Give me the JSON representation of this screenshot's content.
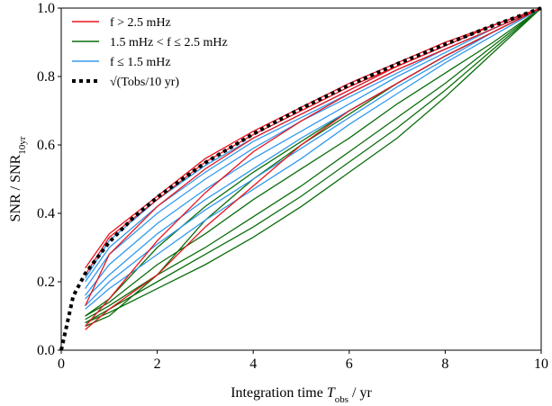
{
  "chart_data": {
    "type": "line",
    "xlabel": [
      "Integration time ",
      "T",
      "obs",
      " / yr"
    ],
    "ylabel": [
      "SNR / SNR",
      "10yr"
    ],
    "xlim": [
      0,
      10
    ],
    "ylim": [
      0,
      1
    ],
    "xticks": [
      0,
      2,
      4,
      6,
      8,
      10
    ],
    "yticks": [
      {
        "value": 0,
        "label": "0.0"
      },
      {
        "value": 0.2,
        "label": "0.2"
      },
      {
        "value": 0.4,
        "label": "0.4"
      },
      {
        "value": 0.6,
        "label": "0.6"
      },
      {
        "value": 0.8,
        "label": "0.8"
      },
      {
        "value": 1,
        "label": "1.0"
      }
    ],
    "legend": "upper left",
    "series": [
      {
        "name": "f > 2.5 mHz",
        "color": "#e8141c",
        "style": "solid",
        "x": [
          0.5,
          1,
          2,
          3,
          4,
          5,
          6,
          7,
          8,
          9,
          10
        ],
        "lines": [
          [
            0.24,
            0.34,
            0.45,
            0.56,
            0.64,
            0.71,
            0.78,
            0.84,
            0.9,
            0.95,
            1
          ],
          [
            0.22,
            0.33,
            0.44,
            0.55,
            0.63,
            0.7,
            0.77,
            0.83,
            0.89,
            0.95,
            1
          ],
          [
            0.13,
            0.28,
            0.42,
            0.53,
            0.62,
            0.69,
            0.76,
            0.83,
            0.89,
            0.95,
            1
          ],
          [
            0.07,
            0.15,
            0.32,
            0.46,
            0.58,
            0.67,
            0.75,
            0.82,
            0.88,
            0.94,
            1
          ],
          [
            0.06,
            0.12,
            0.22,
            0.36,
            0.48,
            0.6,
            0.7,
            0.78,
            0.86,
            0.93,
            1
          ]
        ]
      },
      {
        "name": "1.5 mHz < f ≤ 2.5 mHz",
        "color": "#0b6e0b",
        "style": "solid",
        "x": [
          0.5,
          1,
          2,
          3,
          4,
          5,
          6,
          7,
          8,
          9,
          10
        ],
        "lines": [
          [
            0.1,
            0.14,
            0.25,
            0.34,
            0.44,
            0.53,
            0.62,
            0.72,
            0.81,
            0.9,
            1
          ],
          [
            0.09,
            0.13,
            0.22,
            0.3,
            0.39,
            0.48,
            0.58,
            0.68,
            0.78,
            0.89,
            1
          ],
          [
            0.08,
            0.12,
            0.2,
            0.28,
            0.36,
            0.45,
            0.55,
            0.65,
            0.76,
            0.88,
            1
          ],
          [
            0.08,
            0.11,
            0.18,
            0.25,
            0.33,
            0.42,
            0.52,
            0.62,
            0.74,
            0.87,
            1
          ],
          [
            0.07,
            0.1,
            0.22,
            0.38,
            0.5,
            0.6,
            0.69,
            0.78,
            0.86,
            0.93,
            1
          ],
          [
            0.1,
            0.15,
            0.3,
            0.42,
            0.52,
            0.61,
            0.7,
            0.78,
            0.86,
            0.93,
            1
          ]
        ]
      },
      {
        "name": "f ≤ 1.5 mHz",
        "color": "#3399ee",
        "style": "solid",
        "x": [
          0.5,
          1,
          2,
          3,
          4,
          5,
          6,
          7,
          8,
          9,
          10
        ],
        "lines": [
          [
            0.21,
            0.32,
            0.44,
            0.54,
            0.62,
            0.69,
            0.76,
            0.83,
            0.89,
            0.95,
            1
          ],
          [
            0.18,
            0.28,
            0.4,
            0.5,
            0.59,
            0.67,
            0.74,
            0.81,
            0.88,
            0.94,
            1
          ],
          [
            0.16,
            0.25,
            0.37,
            0.47,
            0.56,
            0.64,
            0.72,
            0.8,
            0.87,
            0.94,
            1
          ],
          [
            0.15,
            0.22,
            0.34,
            0.44,
            0.53,
            0.62,
            0.7,
            0.78,
            0.86,
            0.93,
            1
          ],
          [
            0.13,
            0.2,
            0.31,
            0.41,
            0.5,
            0.59,
            0.68,
            0.77,
            0.85,
            0.93,
            1
          ],
          [
            0.12,
            0.18,
            0.28,
            0.38,
            0.47,
            0.56,
            0.66,
            0.75,
            0.84,
            0.92,
            1
          ],
          [
            0.2,
            0.3,
            0.42,
            0.52,
            0.61,
            0.68,
            0.75,
            0.82,
            0.88,
            0.94,
            1
          ]
        ]
      },
      {
        "name": "√(Tobs/10 yr)",
        "color": "#000000",
        "style": "dotted",
        "x": [
          0,
          0.25,
          0.5,
          1,
          1.5,
          2,
          3,
          4,
          5,
          6,
          7,
          8,
          9,
          10
        ],
        "lines": [
          [
            0,
            0.158,
            0.224,
            0.316,
            0.387,
            0.447,
            0.548,
            0.632,
            0.707,
            0.775,
            0.837,
            0.894,
            0.949,
            1
          ]
        ]
      }
    ]
  }
}
